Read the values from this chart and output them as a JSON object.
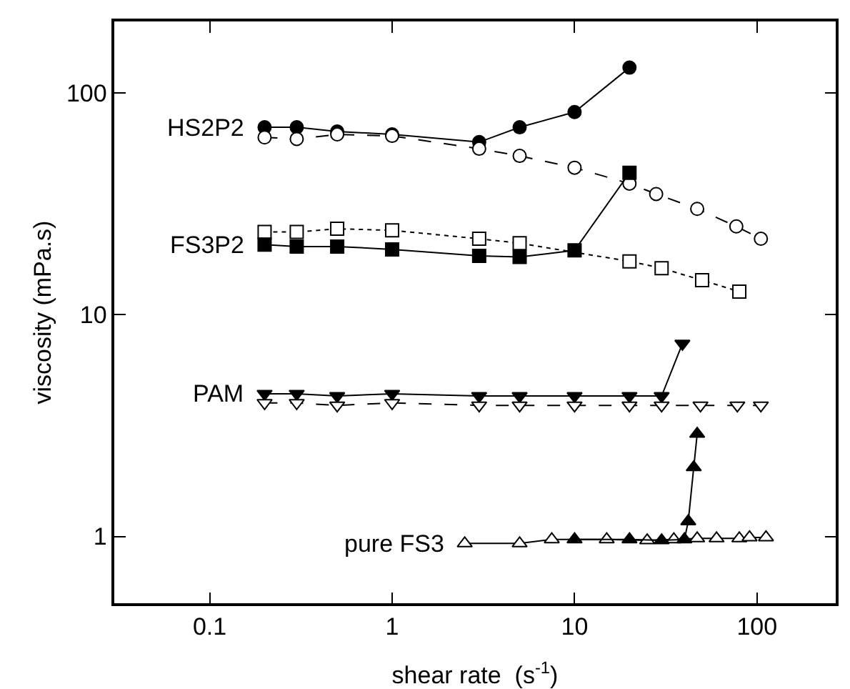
{
  "chart_data": {
    "type": "scatter",
    "xlabel": "shear rate  (s$^{-1}$)",
    "ylabel": "viscosity (mPa.s)",
    "log": "xy",
    "xlim": [
      0.03,
      270
    ],
    "ylim": [
      0.5,
      210
    ],
    "xticks": [
      0.1,
      1,
      10,
      100
    ],
    "yticks": [
      1,
      10,
      100
    ],
    "grid": false,
    "series": [
      {
        "name": "HS2P2",
        "type": "line",
        "marker": "circle",
        "line_style": "solid",
        "color": "#000000",
        "x": [
          0.2,
          0.3,
          0.5,
          1,
          3,
          5,
          10,
          20
        ],
        "values": [
          70,
          70,
          67,
          65,
          60,
          70,
          82,
          130
        ]
      },
      {
        "type": "line",
        "marker": "circle",
        "line_style": "dashed",
        "color": "#ffffff",
        "x": [
          0.2,
          0.3,
          0.5,
          1,
          3,
          5,
          10,
          20,
          28,
          47,
          77,
          105
        ],
        "values": [
          63,
          62,
          65,
          64,
          56,
          52,
          46,
          39,
          35,
          30,
          25,
          22
        ]
      },
      {
        "type": "line",
        "marker": "square",
        "line_style": "dotted",
        "color": "#ffffff",
        "x": [
          0.2,
          0.3,
          0.5,
          1,
          3,
          5,
          20,
          30,
          50,
          80
        ],
        "values": [
          23.6,
          23.6,
          24.4,
          24,
          22,
          21,
          17.4,
          16.2,
          14.3,
          12.7
        ]
      },
      {
        "name": "FS3P2",
        "type": "line",
        "marker": "square",
        "line_style": "solid",
        "color": "#000000",
        "x": [
          0.2,
          0.3,
          0.5,
          1,
          3,
          5,
          10,
          20
        ],
        "values": [
          20.7,
          20.3,
          20.3,
          19.7,
          18.4,
          18.2,
          19.5,
          43.6
        ]
      },
      {
        "name": "PAM",
        "type": "line",
        "marker": "triangle-down",
        "line_style": "solid",
        "color": "#000000",
        "x": [
          0.2,
          0.3,
          0.5,
          1,
          3,
          5,
          10,
          20,
          30,
          39
        ],
        "values": [
          4.4,
          4.4,
          4.3,
          4.4,
          4.3,
          4.3,
          4.3,
          4.3,
          4.3,
          7.4
        ]
      },
      {
        "type": "line",
        "marker": "triangle-down",
        "line_style": "dashed",
        "color": "#ffffff",
        "x": [
          0.2,
          0.3,
          0.5,
          1,
          3,
          5,
          10,
          20,
          30,
          49,
          78,
          105
        ],
        "values": [
          4.0,
          4.0,
          3.9,
          4.0,
          3.9,
          3.9,
          3.9,
          3.9,
          3.9,
          3.9,
          3.9,
          3.9
        ]
      },
      {
        "name": "pure FS3",
        "type": "line",
        "marker": "triangle",
        "line_style": "solid",
        "color": "#ffffff",
        "x": [
          2.5,
          5,
          7.5,
          15,
          25,
          35,
          47,
          60,
          80,
          91,
          112
        ],
        "values": [
          0.93,
          0.93,
          0.97,
          0.97,
          0.96,
          0.97,
          0.98,
          0.98,
          0.98,
          0.99,
          0.99
        ]
      },
      {
        "type": "line",
        "marker": "triangle",
        "line_style": "solid",
        "color": "#000000",
        "x": [
          10,
          20,
          30,
          40,
          42,
          45,
          47
        ],
        "values": [
          0.97,
          0.97,
          0.96,
          0.97,
          1.17,
          2.05,
          2.9
        ]
      }
    ]
  }
}
